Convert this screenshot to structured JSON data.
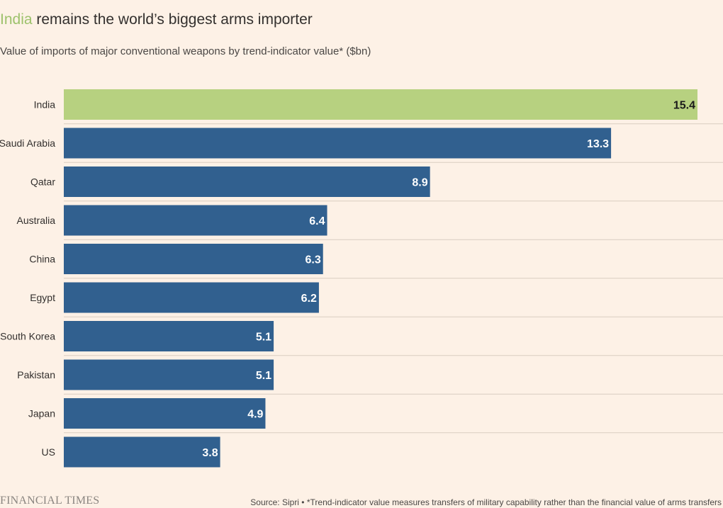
{
  "header": {
    "title_highlight": "India",
    "title_rest": " remains the world’s biggest arms importer",
    "subtitle": "Value of imports of major conventional weapons by trend-indicator value* ($bn)"
  },
  "footer": {
    "logo_text": "FINANCIAL TIMES",
    "source": "Source: Sipri • *Trend-indicator value measures transfers of military capability rather than the financial value of arms transfers"
  },
  "colors": {
    "background": "#fdf1e6",
    "highlight_bar": "#b7d180",
    "bar": "#31608f",
    "highlight_title": "#9dc26c",
    "gridline": "#d9cdc1"
  },
  "chart_data": {
    "type": "bar",
    "orientation": "horizontal",
    "title": "India remains the world’s biggest arms importer",
    "subtitle": "Value of imports of major conventional weapons by trend-indicator value* ($bn)",
    "categories": [
      "India",
      "Saudi Arabia",
      "Qatar",
      "Australia",
      "China",
      "Egypt",
      "South Korea",
      "Pakistan",
      "Japan",
      "US"
    ],
    "values": [
      15.4,
      13.3,
      8.9,
      6.4,
      6.3,
      6.2,
      5.1,
      5.1,
      4.9,
      3.8
    ],
    "value_labels": [
      "15.4",
      "13.3",
      "8.9",
      "6.4",
      "6.3",
      "6.2",
      "5.1",
      "5.1",
      "4.9",
      "3.8"
    ],
    "highlighted_category": "India",
    "xlim": [
      0,
      15.4
    ],
    "grid": false,
    "legend": "none"
  }
}
